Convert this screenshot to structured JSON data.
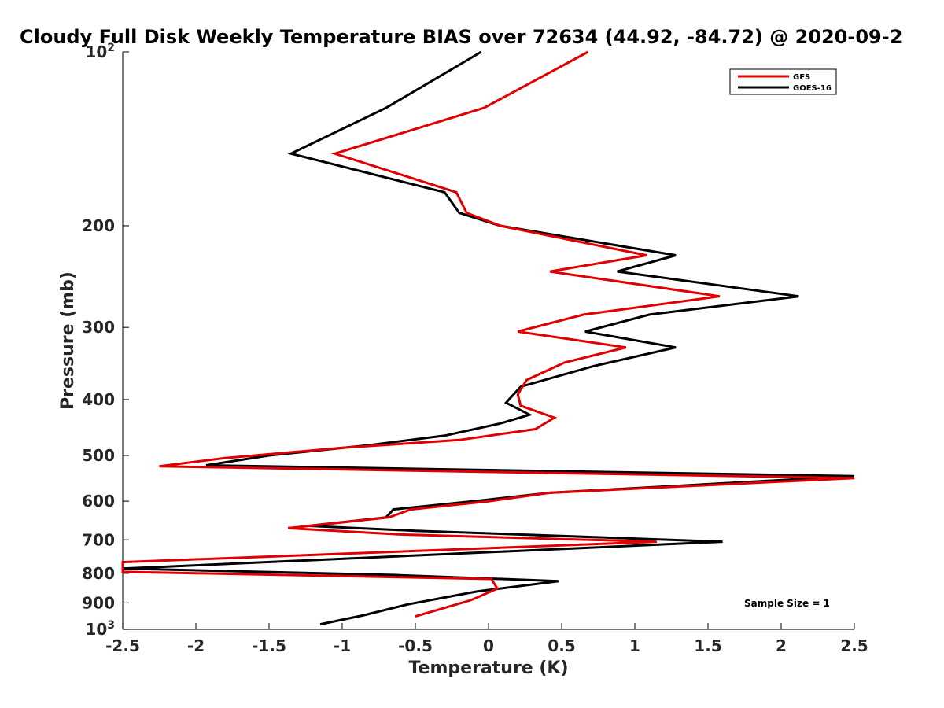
{
  "chart_data": {
    "type": "line",
    "title": "Cloudy Full Disk Weekly Temperature BIAS over 72634 (44.92, -84.72) @ 2020-09-2",
    "xlabel": "Temperature (K)",
    "ylabel": "Pressure (mb)",
    "xlim": [
      -2.5,
      2.5
    ],
    "ylim": [
      100,
      1000
    ],
    "y_scale": "log",
    "y_reversed": true,
    "grid": false,
    "legend_position": "top-right",
    "x_ticks": [
      -2.5,
      -2,
      -1.5,
      -1,
      -0.5,
      0,
      0.5,
      1,
      1.5,
      2,
      2.5
    ],
    "x_tick_labels": [
      "-2.5",
      "-2",
      "-1.5",
      "-1",
      "-0.5",
      "0",
      "0.5",
      "1",
      "1.5",
      "2",
      "2.5"
    ],
    "y_ticks": [
      100,
      200,
      300,
      400,
      500,
      600,
      700,
      800,
      900,
      1000
    ],
    "y_tick_labels": [
      {
        "base": "10",
        "exp": "2"
      },
      {
        "base": "200",
        "exp": ""
      },
      {
        "base": "300",
        "exp": ""
      },
      {
        "base": "400",
        "exp": ""
      },
      {
        "base": "500",
        "exp": ""
      },
      {
        "base": "600",
        "exp": ""
      },
      {
        "base": "700",
        "exp": ""
      },
      {
        "base": "800",
        "exp": ""
      },
      {
        "base": "900",
        "exp": ""
      },
      {
        "base": "10",
        "exp": "3"
      }
    ],
    "series": [
      {
        "name": "GFS",
        "color": "#e00000",
        "points": [
          [
            0.68,
            100
          ],
          [
            -0.03,
            125
          ],
          [
            -1.05,
            150
          ],
          [
            -0.22,
            175
          ],
          [
            -0.15,
            190
          ],
          [
            0.08,
            200
          ],
          [
            1.08,
            225
          ],
          [
            0.42,
            240
          ],
          [
            1.58,
            265
          ],
          [
            0.65,
            285
          ],
          [
            0.2,
            305
          ],
          [
            0.94,
            325
          ],
          [
            0.52,
            345
          ],
          [
            0.26,
            370
          ],
          [
            0.2,
            392
          ],
          [
            0.22,
            410
          ],
          [
            0.45,
            430
          ],
          [
            0.32,
            450
          ],
          [
            -0.2,
            470
          ],
          [
            -1.0,
            485
          ],
          [
            -1.8,
            505
          ],
          [
            -2.25,
            522
          ],
          [
            2.5,
            547
          ],
          [
            0.42,
            580
          ],
          [
            0.0,
            600
          ],
          [
            -0.53,
            620
          ],
          [
            -0.68,
            640
          ],
          [
            -1.37,
            668
          ],
          [
            -0.6,
            685
          ],
          [
            1.15,
            705
          ],
          [
            -2.5,
            765
          ],
          [
            -2.5,
            795
          ],
          [
            0.02,
            818
          ],
          [
            0.06,
            850
          ],
          [
            -0.12,
            890
          ],
          [
            -0.5,
            950
          ]
        ]
      },
      {
        "name": "GOES-16",
        "color": "#000000",
        "points": [
          [
            -0.05,
            100
          ],
          [
            -0.7,
            125
          ],
          [
            -1.35,
            150
          ],
          [
            -0.3,
            175
          ],
          [
            -0.2,
            190
          ],
          [
            0.08,
            200
          ],
          [
            1.28,
            225
          ],
          [
            0.88,
            240
          ],
          [
            2.12,
            265
          ],
          [
            1.1,
            285
          ],
          [
            0.66,
            305
          ],
          [
            1.28,
            325
          ],
          [
            0.72,
            350
          ],
          [
            0.22,
            380
          ],
          [
            0.12,
            405
          ],
          [
            0.28,
            425
          ],
          [
            0.08,
            440
          ],
          [
            -0.3,
            462
          ],
          [
            -0.82,
            480
          ],
          [
            -1.5,
            500
          ],
          [
            -1.93,
            520
          ],
          [
            2.5,
            543
          ],
          [
            0.42,
            580
          ],
          [
            -0.05,
            598
          ],
          [
            -0.65,
            620
          ],
          [
            -0.7,
            640
          ],
          [
            -1.23,
            662
          ],
          [
            -0.5,
            675
          ],
          [
            1.6,
            705
          ],
          [
            -2.5,
            785
          ],
          [
            -0.65,
            805
          ],
          [
            0.48,
            825
          ],
          [
            -0.08,
            860
          ],
          [
            -0.55,
            905
          ],
          [
            -0.85,
            945
          ],
          [
            -1.15,
            980
          ]
        ]
      }
    ],
    "annotations": [
      {
        "text": "Sample Size = 1",
        "x": 1.9,
        "y": 910
      }
    ]
  }
}
